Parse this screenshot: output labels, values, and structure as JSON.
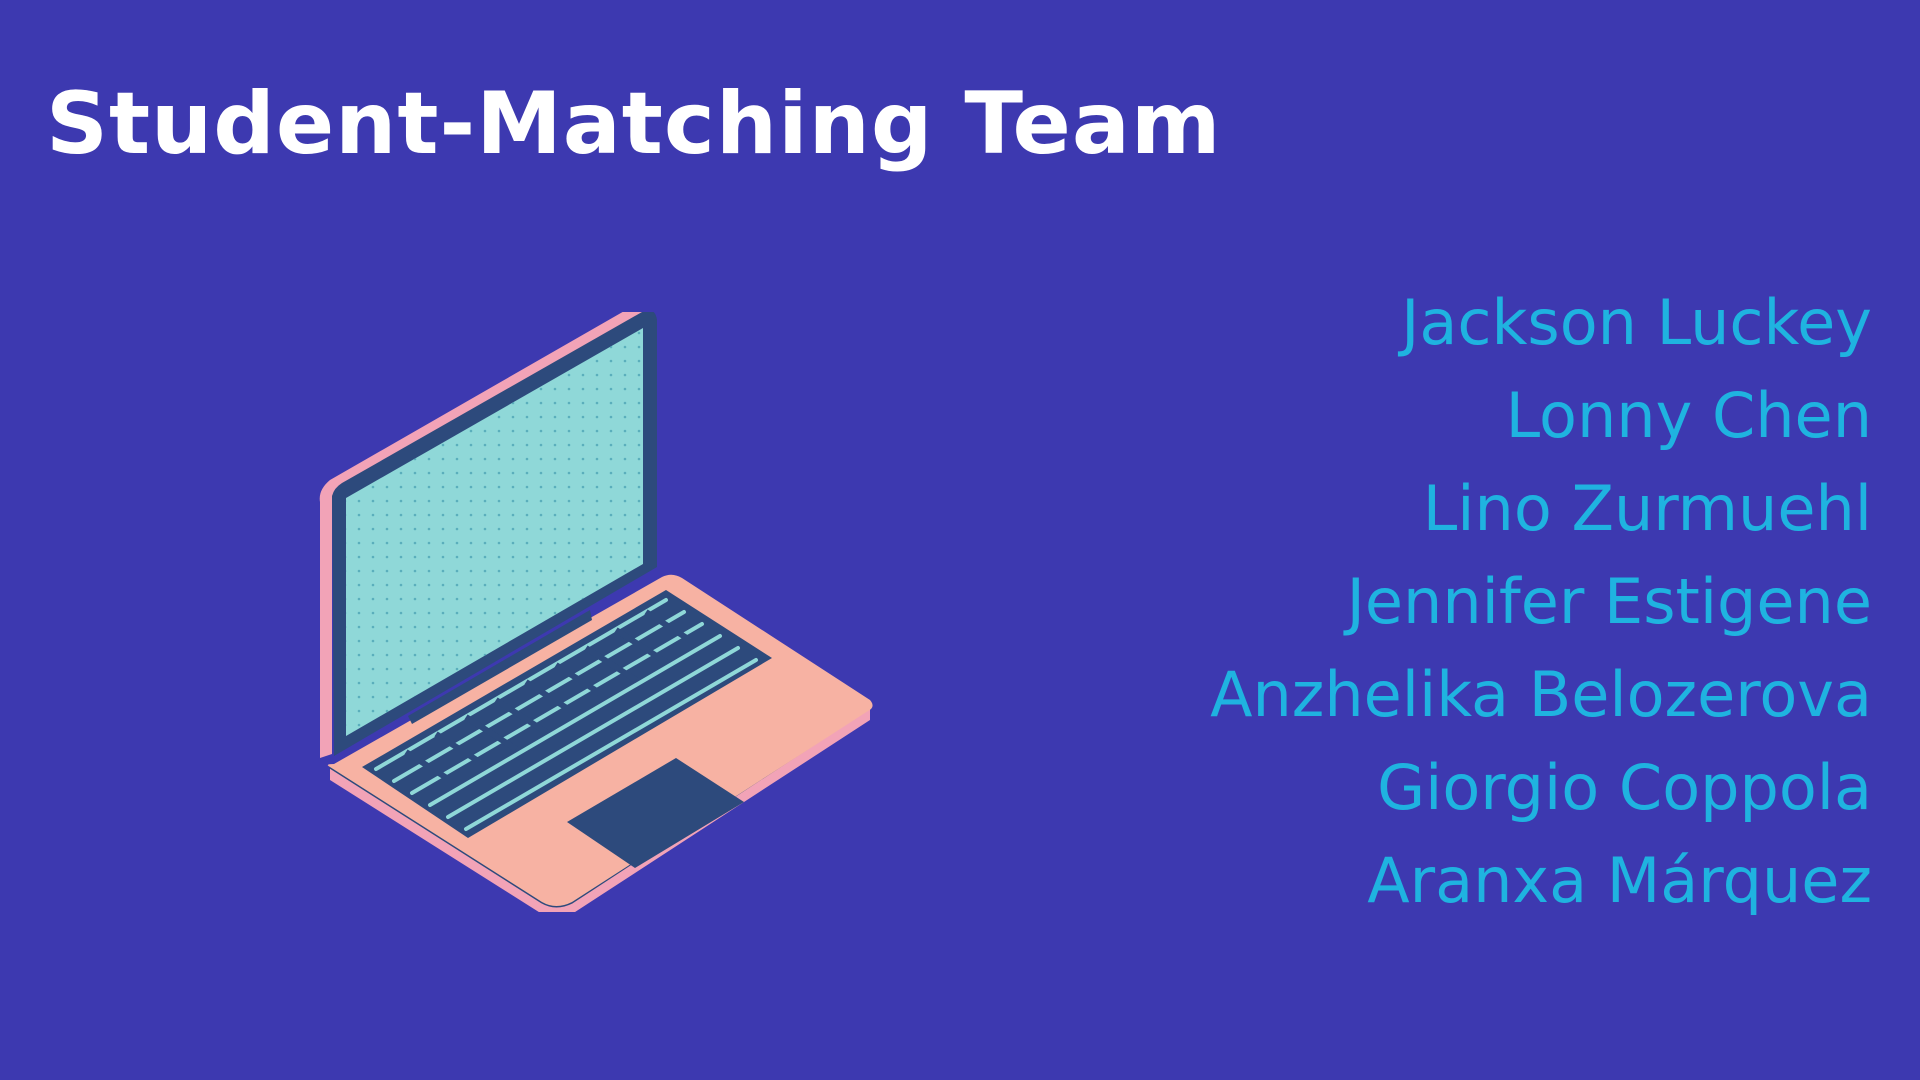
{
  "slide": {
    "title": "Student-Matching Team",
    "illustration_icon": "laptop-icon",
    "team_members": [
      "Jackson Luckey",
      "Lonny Chen",
      "Lino Zurmuehl",
      "Jennifer Estigene",
      "Anzhelika Belozerova",
      "Giorgio Coppola",
      "Aranxa Márquez"
    ]
  },
  "colors": {
    "background": "#3d39b0",
    "title": "#ffffff",
    "names": "#1fb3e0",
    "laptop_body": "#f7b2a3",
    "laptop_edge": "#f2a3b7",
    "laptop_screen": "#8fd8d8",
    "laptop_dark": "#2d4a7c"
  }
}
